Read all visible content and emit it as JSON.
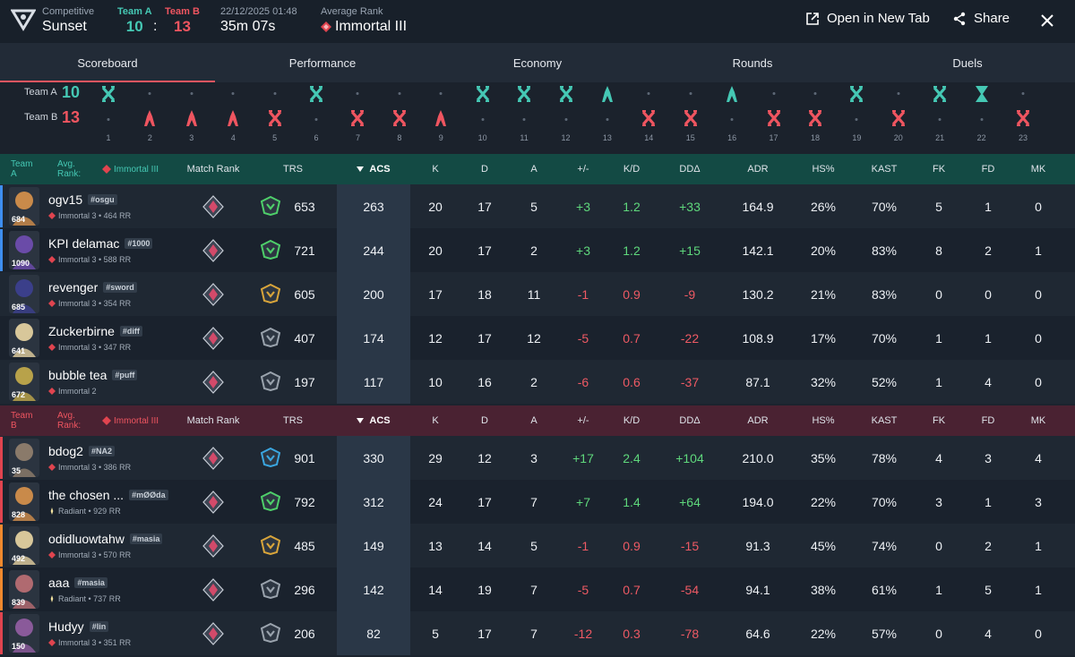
{
  "header": {
    "mode": "Competitive",
    "map": "Sunset",
    "team_a_label": "Team A",
    "team_b_label": "Team B",
    "team_a_score": "10",
    "separator": ":",
    "team_b_score": "13",
    "datetime": "22/12/2025 01:48",
    "duration": "35m 07s",
    "avg_rank_label": "Average Rank",
    "avg_rank": "Immortal III",
    "open_tab": "Open in New Tab",
    "share": "Share"
  },
  "tabs": [
    "Scoreboard",
    "Performance",
    "Economy",
    "Rounds",
    "Duels"
  ],
  "timeline": {
    "team_a_label": "Team A",
    "team_a_score": "10",
    "team_b_label": "Team B",
    "team_b_score": "13",
    "rounds": [
      {
        "n": "1",
        "w": "A",
        "icon": "elim"
      },
      {
        "n": "2",
        "w": "B",
        "icon": "spike"
      },
      {
        "n": "3",
        "w": "B",
        "icon": "spike"
      },
      {
        "n": "4",
        "w": "B",
        "icon": "spike"
      },
      {
        "n": "5",
        "w": "B",
        "icon": "elim"
      },
      {
        "n": "6",
        "w": "A",
        "icon": "elim"
      },
      {
        "n": "7",
        "w": "B",
        "icon": "elim"
      },
      {
        "n": "8",
        "w": "B",
        "icon": "elim"
      },
      {
        "n": "9",
        "w": "B",
        "icon": "spike"
      },
      {
        "n": "10",
        "w": "A",
        "icon": "elim"
      },
      {
        "n": "11",
        "w": "A",
        "icon": "elim"
      },
      {
        "n": "12",
        "w": "A",
        "icon": "elim"
      },
      {
        "n": "13",
        "w": "A",
        "icon": "spike"
      },
      {
        "n": "14",
        "w": "B",
        "icon": "elim"
      },
      {
        "n": "15",
        "w": "B",
        "icon": "elim"
      },
      {
        "n": "16",
        "w": "A",
        "icon": "spike"
      },
      {
        "n": "17",
        "w": "B",
        "icon": "elim"
      },
      {
        "n": "18",
        "w": "B",
        "icon": "elim"
      },
      {
        "n": "19",
        "w": "A",
        "icon": "elim"
      },
      {
        "n": "20",
        "w": "B",
        "icon": "elim"
      },
      {
        "n": "21",
        "w": "A",
        "icon": "elim"
      },
      {
        "n": "22",
        "w": "A",
        "icon": "time"
      },
      {
        "n": "23",
        "w": "B",
        "icon": "elim"
      }
    ]
  },
  "columns": {
    "match_rank": "Match Rank",
    "trs": "TRS",
    "acs": "ACS",
    "k": "K",
    "d": "D",
    "a": "A",
    "pm": "+/-",
    "kd": "K/D",
    "dd": "DDΔ",
    "adr": "ADR",
    "hs": "HS%",
    "kast": "KAST",
    "fk": "FK",
    "fd": "FD",
    "mk": "MK"
  },
  "team_a": {
    "name": "Team A",
    "avg_label": "Avg. Rank:",
    "avg_rank": "Immortal III",
    "color": "#45c8b4",
    "players": [
      {
        "name": "ogv15",
        "tag": "#osgu",
        "rank": "Immortal 3 • 464 RR",
        "level": "684",
        "trs": "653",
        "acs": "263",
        "k": "20",
        "d": "17",
        "a": "5",
        "pm": "+3",
        "kd": "1.2",
        "dd": "+33",
        "adr": "164.9",
        "hs": "26%",
        "kast": "70%",
        "fk": "5",
        "fd": "1",
        "mk": "0",
        "bar": "#3e8ef0",
        "avatar": "#c98a4a",
        "agent": "#4ecf6a"
      },
      {
        "name": "KPI delamac",
        "tag": "#1000",
        "rank": "Immortal 3 • 588 RR",
        "level": "1090",
        "trs": "721",
        "acs": "244",
        "k": "20",
        "d": "17",
        "a": "2",
        "pm": "+3",
        "kd": "1.2",
        "dd": "+15",
        "adr": "142.1",
        "hs": "20%",
        "kast": "83%",
        "fk": "8",
        "fd": "2",
        "mk": "1",
        "bar": "#3e8ef0",
        "avatar": "#6a4ba8",
        "agent": "#4ecf6a"
      },
      {
        "name": "revenger",
        "tag": "#sword",
        "rank": "Immortal 3 • 354 RR",
        "level": "685",
        "trs": "605",
        "acs": "200",
        "k": "17",
        "d": "18",
        "a": "11",
        "pm": "-1",
        "kd": "0.9",
        "dd": "-9",
        "adr": "130.2",
        "hs": "21%",
        "kast": "83%",
        "fk": "0",
        "fd": "0",
        "mk": "0",
        "bar": "",
        "avatar": "#3b3f8a",
        "agent": "#d9a53a"
      },
      {
        "name": "Zuckerbirne",
        "tag": "#diff",
        "rank": "Immortal 3 • 347 RR",
        "level": "641",
        "trs": "407",
        "acs": "174",
        "k": "12",
        "d": "17",
        "a": "12",
        "pm": "-5",
        "kd": "0.7",
        "dd": "-22",
        "adr": "108.9",
        "hs": "17%",
        "kast": "70%",
        "fk": "1",
        "fd": "1",
        "mk": "0",
        "bar": "",
        "avatar": "#d8c79a",
        "agent": "#9aa3ad"
      },
      {
        "name": "bubble tea",
        "tag": "#puff",
        "rank": "Immortal 2",
        "level": "672",
        "trs": "197",
        "acs": "117",
        "k": "10",
        "d": "16",
        "a": "2",
        "pm": "-6",
        "kd": "0.6",
        "dd": "-37",
        "adr": "87.1",
        "hs": "32%",
        "kast": "52%",
        "fk": "1",
        "fd": "4",
        "mk": "0",
        "bar": "",
        "avatar": "#b8a24a",
        "agent": "#9aa3ad"
      }
    ]
  },
  "team_b": {
    "name": "Team B",
    "avg_label": "Avg. Rank:",
    "avg_rank": "Immortal III",
    "color": "#ef5560",
    "players": [
      {
        "name": "bdog2",
        "tag": "#NA2",
        "rank": "Immortal 3 • 386 RR",
        "level": "35",
        "trs": "901",
        "acs": "330",
        "k": "29",
        "d": "12",
        "a": "3",
        "pm": "+17",
        "kd": "2.4",
        "dd": "+104",
        "adr": "210.0",
        "hs": "35%",
        "kast": "78%",
        "fk": "4",
        "fd": "3",
        "mk": "4",
        "bar": "#e0444f",
        "avatar": "#8a7a6a",
        "agent": "#3aa6e0"
      },
      {
        "name": "the chosen ...",
        "tag": "#mØØda",
        "rank": "Radiant • 929 RR",
        "level": "828",
        "trs": "792",
        "acs": "312",
        "k": "24",
        "d": "17",
        "a": "7",
        "pm": "+7",
        "kd": "1.4",
        "dd": "+64",
        "adr": "194.0",
        "hs": "22%",
        "kast": "70%",
        "fk": "3",
        "fd": "1",
        "mk": "3",
        "bar": "#e0444f",
        "avatar": "#c98a4a",
        "agent": "#4ecf6a"
      },
      {
        "name": "odidluowtahw",
        "tag": "#masia",
        "rank": "Immortal 3 • 570 RR",
        "level": "492",
        "trs": "485",
        "acs": "149",
        "k": "13",
        "d": "14",
        "a": "5",
        "pm": "-1",
        "kd": "0.9",
        "dd": "-15",
        "adr": "91.3",
        "hs": "45%",
        "kast": "74%",
        "fk": "0",
        "fd": "2",
        "mk": "1",
        "bar": "#f0892e",
        "avatar": "#d8c79a",
        "agent": "#d9a53a"
      },
      {
        "name": "aaa",
        "tag": "#masia",
        "rank": "Radiant • 737 RR",
        "level": "839",
        "trs": "296",
        "acs": "142",
        "k": "14",
        "d": "19",
        "a": "7",
        "pm": "-5",
        "kd": "0.7",
        "dd": "-54",
        "adr": "94.1",
        "hs": "38%",
        "kast": "61%",
        "fk": "1",
        "fd": "5",
        "mk": "1",
        "bar": "#f0892e",
        "avatar": "#b06a70",
        "agent": "#9aa3ad"
      },
      {
        "name": "Hudyy",
        "tag": "#lin",
        "rank": "Immortal 3 • 351 RR",
        "level": "150",
        "trs": "206",
        "acs": "82",
        "k": "5",
        "d": "17",
        "a": "7",
        "pm": "-12",
        "kd": "0.3",
        "dd": "-78",
        "adr": "64.6",
        "hs": "22%",
        "kast": "57%",
        "fk": "0",
        "fd": "4",
        "mk": "0",
        "bar": "#e0444f",
        "avatar": "#8a5a9a",
        "agent": "#9aa3ad"
      }
    ]
  }
}
